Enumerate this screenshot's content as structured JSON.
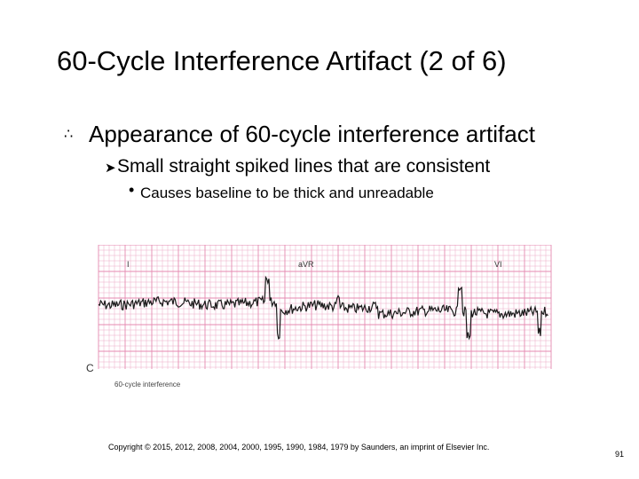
{
  "slide": {
    "title": "60-Cycle Interference Artifact (2 of 6)",
    "bullet1": "Appearance of 60-cycle interference artifact",
    "bullet2": "Small straight spiked lines that are consistent",
    "bullet3": "Causes baseline to be thick and unreadable",
    "copyright": "Copyright © 2015, 2012, 2008, 2004, 2000, 1995, 1990, 1984, 1979 by Saunders, an imprint of Elsevier Inc.",
    "page_number": "91"
  },
  "ecg_figure": {
    "lead_labels": [
      "I",
      "aVR",
      "VI"
    ],
    "panel_label": "C",
    "caption": "60-cycle interference",
    "grid_color": "#e58ab0",
    "trace_color": "#1a1a1a"
  }
}
